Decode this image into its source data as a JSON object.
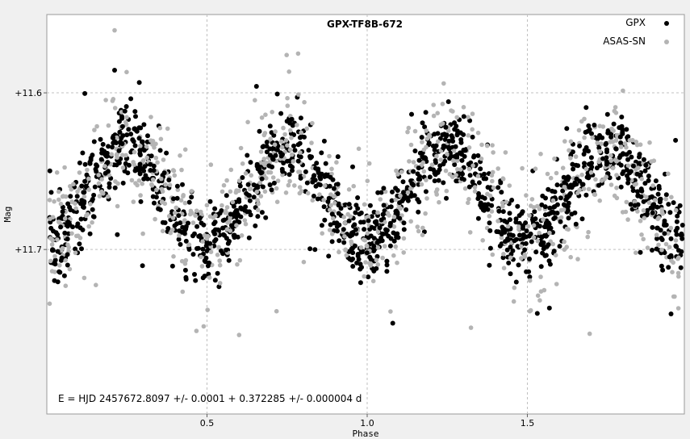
{
  "chart_data": {
    "type": "scatter",
    "title": "GPX-TF8B-672",
    "xlabel": "Phase",
    "ylabel": "Mag",
    "xlim": [
      0.0,
      1.99
    ],
    "ylim": [
      11.55,
      11.805
    ],
    "y_inverted": true,
    "grid": true,
    "legend_position": "top-right",
    "x_ticks": [
      0.5,
      1.0,
      1.5
    ],
    "x_tick_labels": [
      "0.5",
      "1.0",
      "1.5"
    ],
    "y_ticks": [
      11.6,
      11.7
    ],
    "y_tick_labels": [
      "+11.6",
      "+11.7"
    ],
    "annotation": "E = HJD 2457672.8097 +/- 0.0001 + 0.372285 +/- 0.000004 d",
    "series": [
      {
        "name": "GPX",
        "color": "#000000",
        "model": {
          "mean": 11.665,
          "amplitude": 0.03,
          "harmonic": 2,
          "phase_of_max": 0.25,
          "scatter": 0.012,
          "phase_range": [
            0.0,
            1.99
          ],
          "count": 1100
        }
      },
      {
        "name": "ASAS-SN",
        "color": "#b4b4b4",
        "model": {
          "mean": 11.665,
          "amplitude": 0.03,
          "harmonic": 2,
          "phase_of_max": 0.25,
          "scatter": 0.02,
          "phase_range": [
            0.0,
            1.99
          ],
          "count": 800
        }
      }
    ]
  }
}
